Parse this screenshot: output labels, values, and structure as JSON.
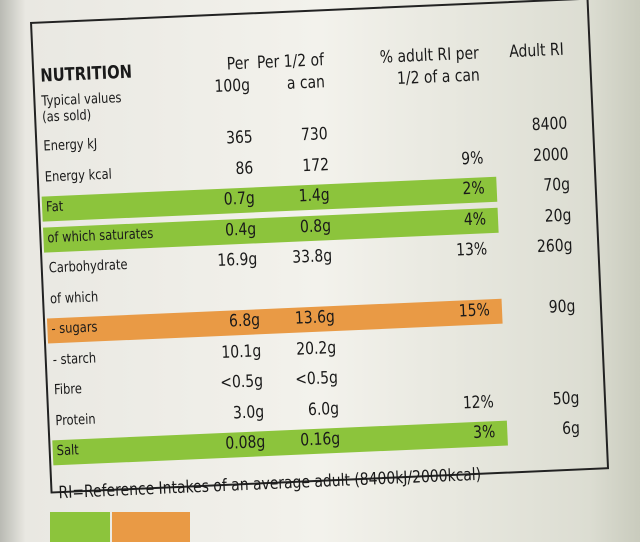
{
  "header": {
    "title": "NUTRITION",
    "subtitle": "Typical values (as sold)",
    "columns": [
      "Per 100g",
      "Per 1/2 of a can",
      "% adult RI per 1/2 of a can",
      "Adult RI"
    ]
  },
  "table": {
    "rows": [
      {
        "label": "Energy kJ",
        "cells": [
          "365",
          "730",
          null,
          "8400"
        ]
      },
      {
        "label": "Energy kcal",
        "cells": [
          "86",
          "172",
          "9%",
          "2000"
        ]
      },
      {
        "label": "Fat",
        "cells": [
          "0.7g",
          "1.4g",
          "2%",
          "70g"
        ],
        "band": "#8cc43c"
      },
      {
        "label": "of which saturates",
        "cells": [
          "0.4g",
          "0.8g",
          "4%",
          "20g"
        ],
        "band": "#8cc43c"
      },
      {
        "label": "Carbohydrate",
        "cells": [
          "16.9g",
          "33.8g",
          "13%",
          "260g"
        ]
      },
      {
        "label": "of which"
      },
      {
        "label": "- sugars",
        "cells": [
          "6.8g",
          "13.6g",
          "15%",
          "90g"
        ],
        "band": "#e99a45"
      },
      {
        "label": "- starch",
        "cells": [
          "10.1g",
          "20.2g",
          null,
          null
        ]
      },
      {
        "label": "Fibre",
        "cells": [
          "<0.5g",
          "<0.5g",
          null,
          null
        ]
      },
      {
        "label": "Protein",
        "cells": [
          "3.0g",
          "6.0g",
          "12%",
          "50g"
        ]
      },
      {
        "label": "Salt",
        "cells": [
          "0.08g",
          "0.16g",
          "3%",
          "6g"
        ],
        "band": "#8cc43c"
      }
    ]
  },
  "footer": {
    "note": "RI=Reference Intakes of an average adult (8400kJ/2000kcal)"
  }
}
